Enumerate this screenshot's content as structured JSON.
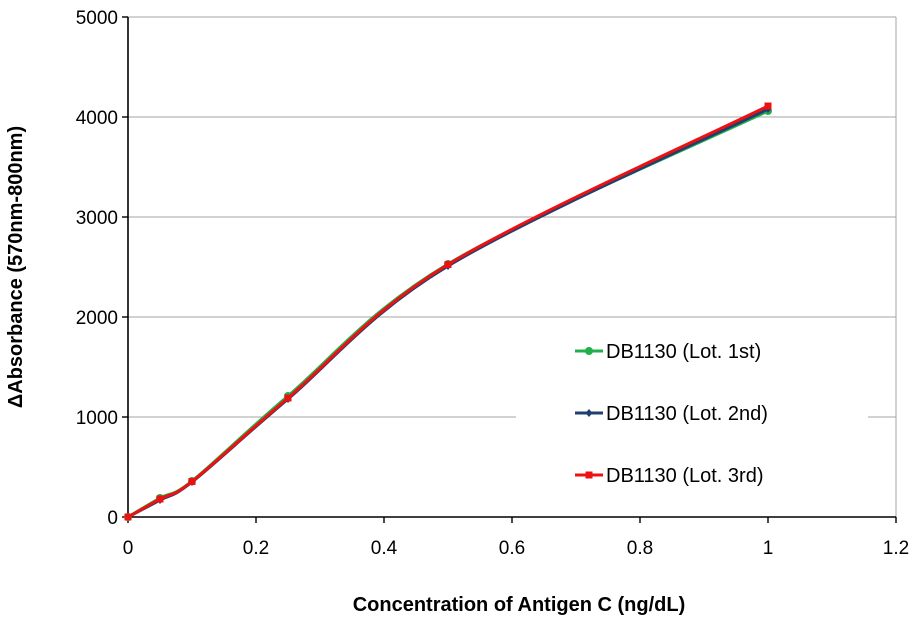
{
  "chart_data": {
    "type": "line",
    "title": "",
    "xlabel": "Concentration  of Antigen  C  (ng/dL)",
    "ylabel": "ΔAbsorbance (570nm-800nm)",
    "xlim": [
      0,
      1.2
    ],
    "ylim": [
      0,
      5000
    ],
    "xticks": [
      0,
      0.2,
      0.4,
      0.6,
      0.8,
      1,
      1.2
    ],
    "xtick_labels": [
      "0",
      "0.2",
      "0.4",
      "0.6",
      "0.8",
      "1",
      "1.2"
    ],
    "yticks": [
      0,
      1000,
      2000,
      3000,
      4000,
      5000
    ],
    "ytick_labels": [
      "0",
      "1000",
      "2000",
      "3000",
      "4000",
      "5000"
    ],
    "grid": "horizontal",
    "legend_position": "right",
    "series": [
      {
        "name": "DB1130 (Lot. 1st)",
        "color": "#22b04b",
        "marker": "circle",
        "x": [
          0,
          0.05,
          0.1,
          0.25,
          0.5,
          1
        ],
        "y": [
          0,
          190,
          360,
          1210,
          2530,
          4060
        ]
      },
      {
        "name": "DB1130 (Lot. 2nd)",
        "color": "#1f3f73",
        "marker": "diamond",
        "x": [
          0,
          0.05,
          0.1,
          0.25,
          0.5,
          1
        ],
        "y": [
          0,
          170,
          350,
          1180,
          2510,
          4080
        ]
      },
      {
        "name": "DB1130 (Lot. 3rd)",
        "color": "#ee1111",
        "marker": "square",
        "x": [
          0,
          0.05,
          0.1,
          0.25,
          0.5,
          1
        ],
        "y": [
          0,
          180,
          355,
          1190,
          2525,
          4110
        ]
      }
    ]
  }
}
